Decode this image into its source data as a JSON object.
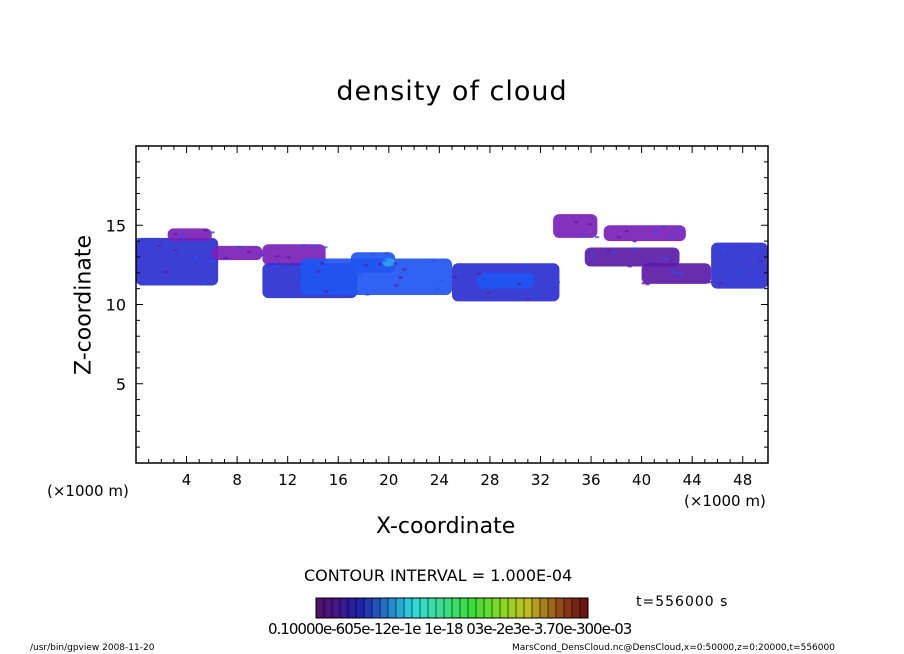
{
  "chart_data": {
    "type": "heatmap",
    "title": "density of cloud",
    "xlabel": "X-coordinate",
    "ylabel": "Z-coordinate",
    "x_unit_left": "(×1000 m)",
    "x_unit_right": "(×1000 m)",
    "xlim": [
      0,
      50
    ],
    "ylim": [
      0,
      20
    ],
    "x_ticks": [
      "4",
      "8",
      "12",
      "16",
      "20",
      "24",
      "28",
      "32",
      "36",
      "40",
      "44",
      "48"
    ],
    "y_ticks": [
      "5",
      "10",
      "15"
    ],
    "contour_interval_text": "CONTOUR INTERVAL = 1.000E-04",
    "time_text": "t=556000  s",
    "colorbar_ticks_text": "0.10000e-605e-12e-1e 1e-18 03e-2e3e-3.70e-300e-03",
    "colors": {
      "violet": "#7a1fb8",
      "purple": "#5b1aa8",
      "indigo": "#2b2fd0",
      "blue": "#1f55f0",
      "lightblue": "#2f9ff0"
    },
    "cloud_bands": [
      {
        "x0": 0,
        "x1": 6.5,
        "z0": 11.2,
        "z1": 14.2,
        "level": "indigo"
      },
      {
        "x0": 2.5,
        "x1": 6.0,
        "z0": 14.0,
        "z1": 14.8,
        "level": "violet"
      },
      {
        "x0": 6.0,
        "x1": 10.0,
        "z0": 12.8,
        "z1": 13.7,
        "level": "violet"
      },
      {
        "x0": 10.0,
        "x1": 15.0,
        "z0": 12.5,
        "z1": 13.8,
        "level": "violet"
      },
      {
        "x0": 10.0,
        "x1": 17.5,
        "z0": 10.4,
        "z1": 12.6,
        "level": "indigo"
      },
      {
        "x0": 13.0,
        "x1": 25.0,
        "z0": 10.6,
        "z1": 12.9,
        "level": "blue"
      },
      {
        "x0": 17.0,
        "x1": 20.5,
        "z0": 12.0,
        "z1": 13.3,
        "level": "blue"
      },
      {
        "x0": 19.5,
        "x1": 20.5,
        "z0": 12.4,
        "z1": 12.9,
        "level": "lightblue"
      },
      {
        "x0": 25.0,
        "x1": 33.5,
        "z0": 10.2,
        "z1": 12.6,
        "level": "indigo"
      },
      {
        "x0": 27.0,
        "x1": 31.5,
        "z0": 11.0,
        "z1": 12.0,
        "level": "blue"
      },
      {
        "x0": 33.0,
        "x1": 36.5,
        "z0": 14.2,
        "z1": 15.7,
        "level": "violet"
      },
      {
        "x0": 35.5,
        "x1": 43.0,
        "z0": 12.4,
        "z1": 13.6,
        "level": "purple"
      },
      {
        "x0": 37.0,
        "x1": 43.5,
        "z0": 14.0,
        "z1": 15.0,
        "level": "violet"
      },
      {
        "x0": 40.0,
        "x1": 45.5,
        "z0": 11.3,
        "z1": 12.6,
        "level": "purple"
      },
      {
        "x0": 45.5,
        "x1": 50.0,
        "z0": 11.0,
        "z1": 13.9,
        "level": "indigo"
      }
    ]
  },
  "footer": {
    "left": "/usr/bin/gpview   2008-11-20",
    "right": "MarsCond_DensCloud.nc@DensCloud,x=0:50000,z=0:20000,t=556000"
  }
}
